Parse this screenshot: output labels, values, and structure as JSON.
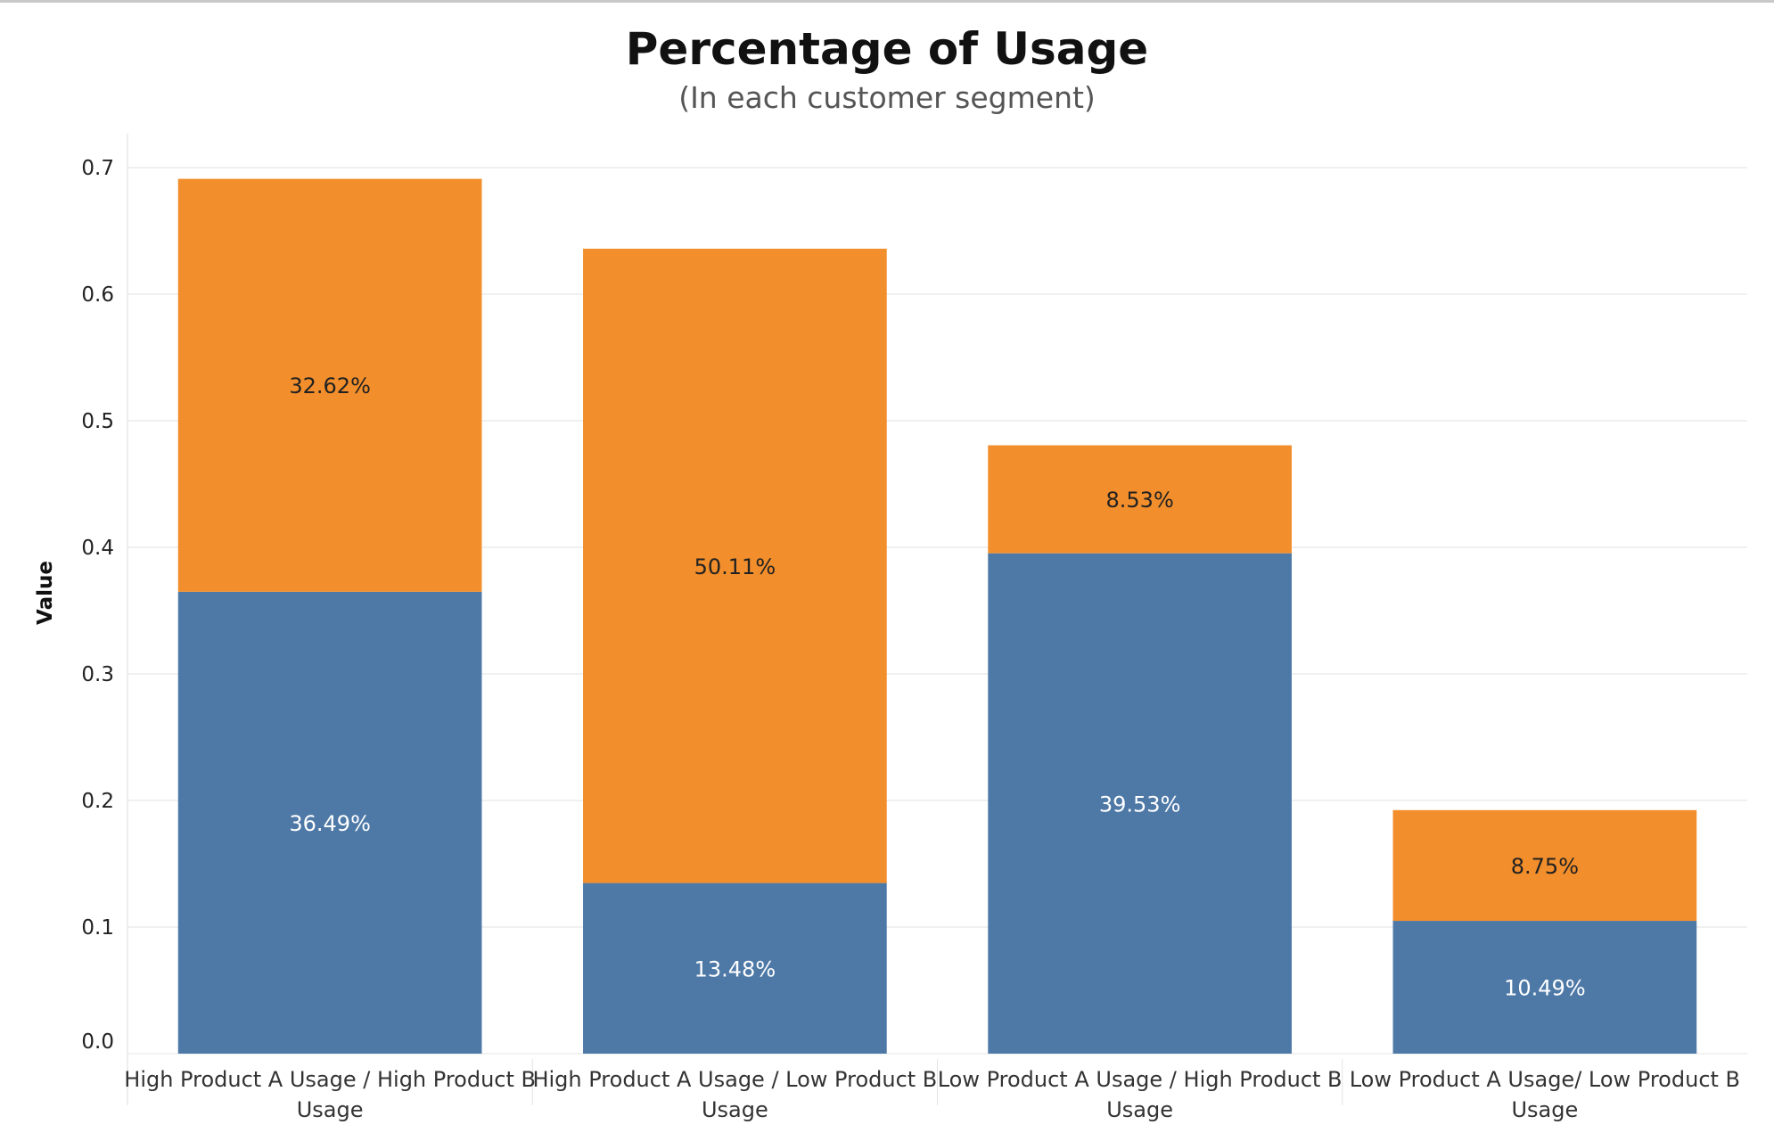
{
  "chart_data": {
    "type": "bar",
    "stacked": true,
    "title": "Percentage of Usage",
    "subtitle": "(In each customer segment)",
    "xlabel": "",
    "ylabel": "Value",
    "ylim": [
      0,
      0.7
    ],
    "yticks": [
      "0.0",
      "0.1",
      "0.2",
      "0.3",
      "0.4",
      "0.5",
      "0.6",
      "0.7"
    ],
    "grid": true,
    "categories": [
      [
        "High Product A Usage / High Product B",
        "Usage"
      ],
      [
        "High Product A Usage / Low Product B",
        "Usage"
      ],
      [
        "Low Product A Usage / High Product B",
        "Usage"
      ],
      [
        "Low Product A Usage/ Low Product B",
        "Usage"
      ]
    ],
    "series": [
      {
        "color": "#4e79a7",
        "label_color": "#ffffff",
        "values": [
          0.3649,
          0.1348,
          0.3953,
          0.1049
        ],
        "data_labels": [
          "36.49%",
          "13.48%",
          "39.53%",
          "10.49%"
        ]
      },
      {
        "color": "#f28e2b",
        "label_color": "#222222",
        "values": [
          0.3262,
          0.5011,
          0.0853,
          0.0875
        ],
        "data_labels": [
          "32.62%",
          "50.11%",
          "8.53%",
          "8.75%"
        ]
      }
    ]
  }
}
